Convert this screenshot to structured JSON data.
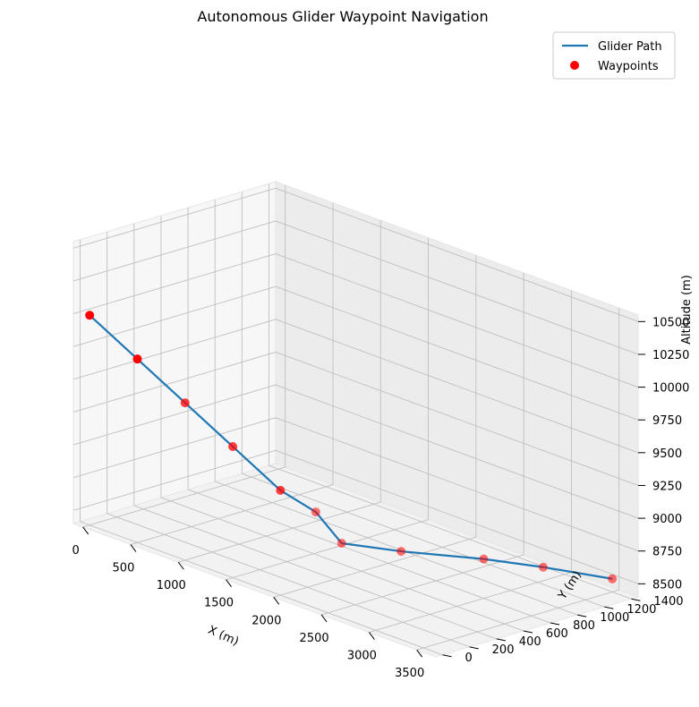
{
  "chart_data": {
    "type": "line3d",
    "title": "Autonomous Glider Waypoint Navigation",
    "xlabel": "X (m)",
    "ylabel": "Y (m)",
    "zlabel": "Altitude (m)",
    "xlim": [
      -100,
      3700
    ],
    "ylim": [
      -50,
      1450
    ],
    "zlim": [
      8400,
      10550
    ],
    "xticks": [
      0,
      500,
      1000,
      1500,
      2000,
      2500,
      3000,
      3500
    ],
    "yticks": [
      0,
      200,
      400,
      600,
      800,
      1000,
      1200,
      1400
    ],
    "zticks": [
      8500,
      8750,
      9000,
      9250,
      9500,
      9750,
      10000,
      10250,
      10500
    ],
    "grid": true,
    "legend_position": "top-right",
    "path": {
      "name": "Glider Path",
      "color": "#1f77b4",
      "x": [
        0,
        500,
        1000,
        1500,
        2000,
        2300,
        2500,
        2700,
        3000,
        3200,
        3500
      ],
      "y": [
        0,
        0,
        0,
        0,
        0,
        50,
        100,
        400,
        800,
        1100,
        1400
      ],
      "z": [
        10000,
        9800,
        9600,
        9400,
        9200,
        9100,
        8900,
        8800,
        8700,
        8600,
        8500
      ]
    },
    "waypoints": {
      "name": "Waypoints",
      "color": "#ff0000",
      "x": [
        0,
        500,
        1000,
        1500,
        2000,
        2300,
        2500,
        2700,
        3000,
        3200,
        3500
      ],
      "y": [
        0,
        0,
        0,
        0,
        0,
        50,
        100,
        400,
        800,
        1100,
        1400
      ],
      "z": [
        10000,
        9800,
        9600,
        9400,
        9200,
        9100,
        8900,
        8800,
        8700,
        8600,
        8500
      ]
    }
  }
}
